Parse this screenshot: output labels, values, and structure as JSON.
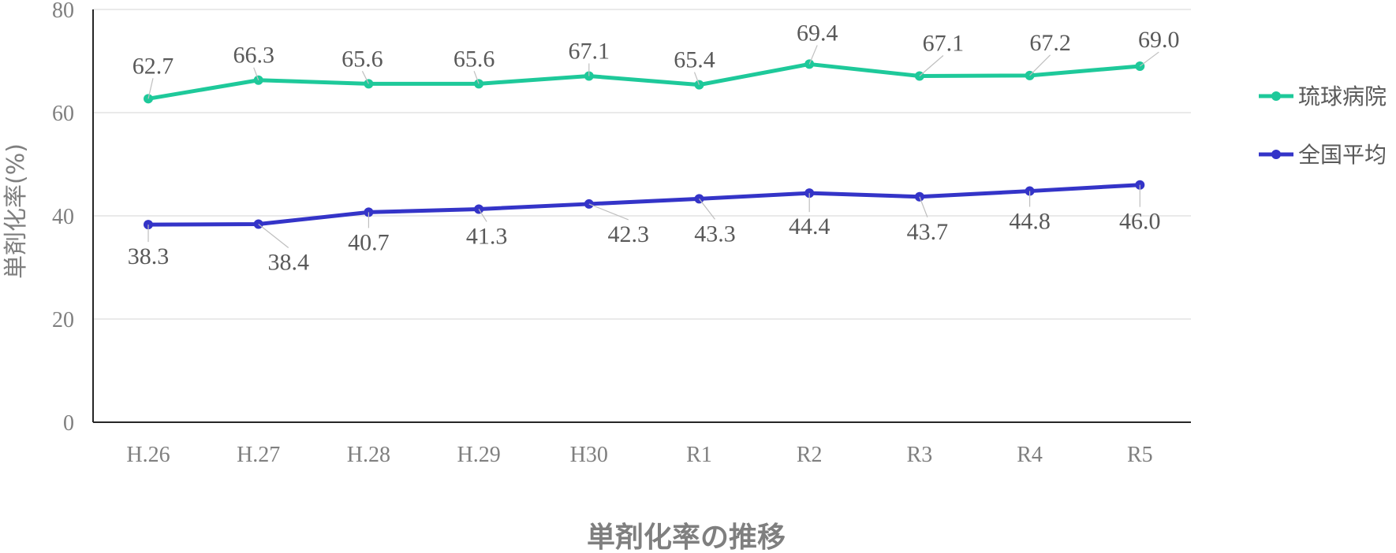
{
  "chart_data": {
    "type": "line",
    "title": "単剤化率の推移",
    "xlabel": "",
    "ylabel": "単剤化率(%)",
    "categories": [
      "H.26",
      "H.27",
      "H.28",
      "H.29",
      "H30",
      "R1",
      "R2",
      "R3",
      "R4",
      "R5"
    ],
    "ylim": [
      0,
      80
    ],
    "yticks": [
      0,
      20,
      40,
      60,
      80
    ],
    "grid": true,
    "legend_position": "right",
    "series": [
      {
        "name": "琉球病院",
        "color": "#1ec99a",
        "values": [
          62.7,
          66.3,
          65.6,
          65.6,
          67.1,
          65.4,
          69.4,
          67.1,
          67.2,
          69.0
        ],
        "labels": [
          "62.7",
          "66.3",
          "65.6",
          "65.6",
          "67.1",
          "65.4",
          "69.4",
          "67.1",
          "67.2",
          "69.0"
        ]
      },
      {
        "name": "全国平均",
        "color": "#3434c8",
        "values": [
          38.3,
          38.4,
          40.7,
          41.3,
          42.3,
          43.3,
          44.4,
          43.7,
          44.8,
          46.0
        ],
        "labels": [
          "38.3",
          "38.4",
          "40.7",
          "41.3",
          "42.3",
          "43.3",
          "44.4",
          "43.7",
          "44.8",
          "46.0"
        ]
      }
    ]
  }
}
